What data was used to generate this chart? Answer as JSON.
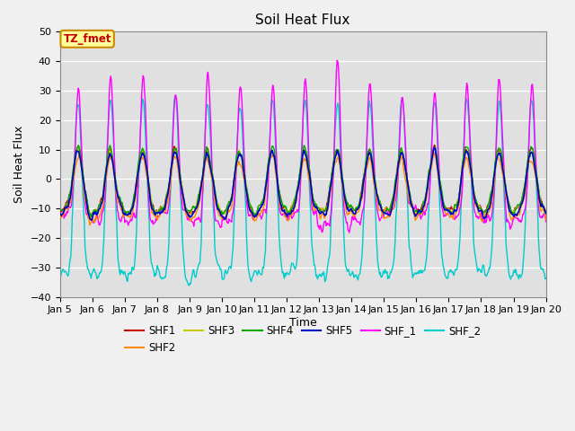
{
  "title": "Soil Heat Flux",
  "xlabel": "Time",
  "ylabel": "Soil Heat Flux",
  "ylim": [
    -40,
    50
  ],
  "xlim_days": [
    5,
    20
  ],
  "xtick_labels": [
    "Jan 5",
    "Jan 6",
    "Jan 7",
    "Jan 8",
    "Jan 9",
    "Jan 10",
    "Jan 11",
    "Jan 12",
    "Jan 13",
    "Jan 14",
    "Jan 15",
    "Jan 16",
    "Jan 17",
    "Jan 18",
    "Jan 19",
    "Jan 20"
  ],
  "series_colors": {
    "SHF1": "#cc0000",
    "SHF2": "#ff8800",
    "SHF3": "#cccc00",
    "SHF4": "#00aa00",
    "SHF5": "#0000cc",
    "SHF_1": "#ff00ff",
    "SHF_2": "#00cccc"
  },
  "annotation_text": "TZ_fmet",
  "annotation_color": "#cc0000",
  "annotation_bg": "#ffff99",
  "annotation_border": "#cc8800",
  "fig_bg": "#f0f0f0",
  "plot_bg": "#e0e0e0",
  "title_fontsize": 11,
  "label_fontsize": 9,
  "tick_fontsize": 8
}
